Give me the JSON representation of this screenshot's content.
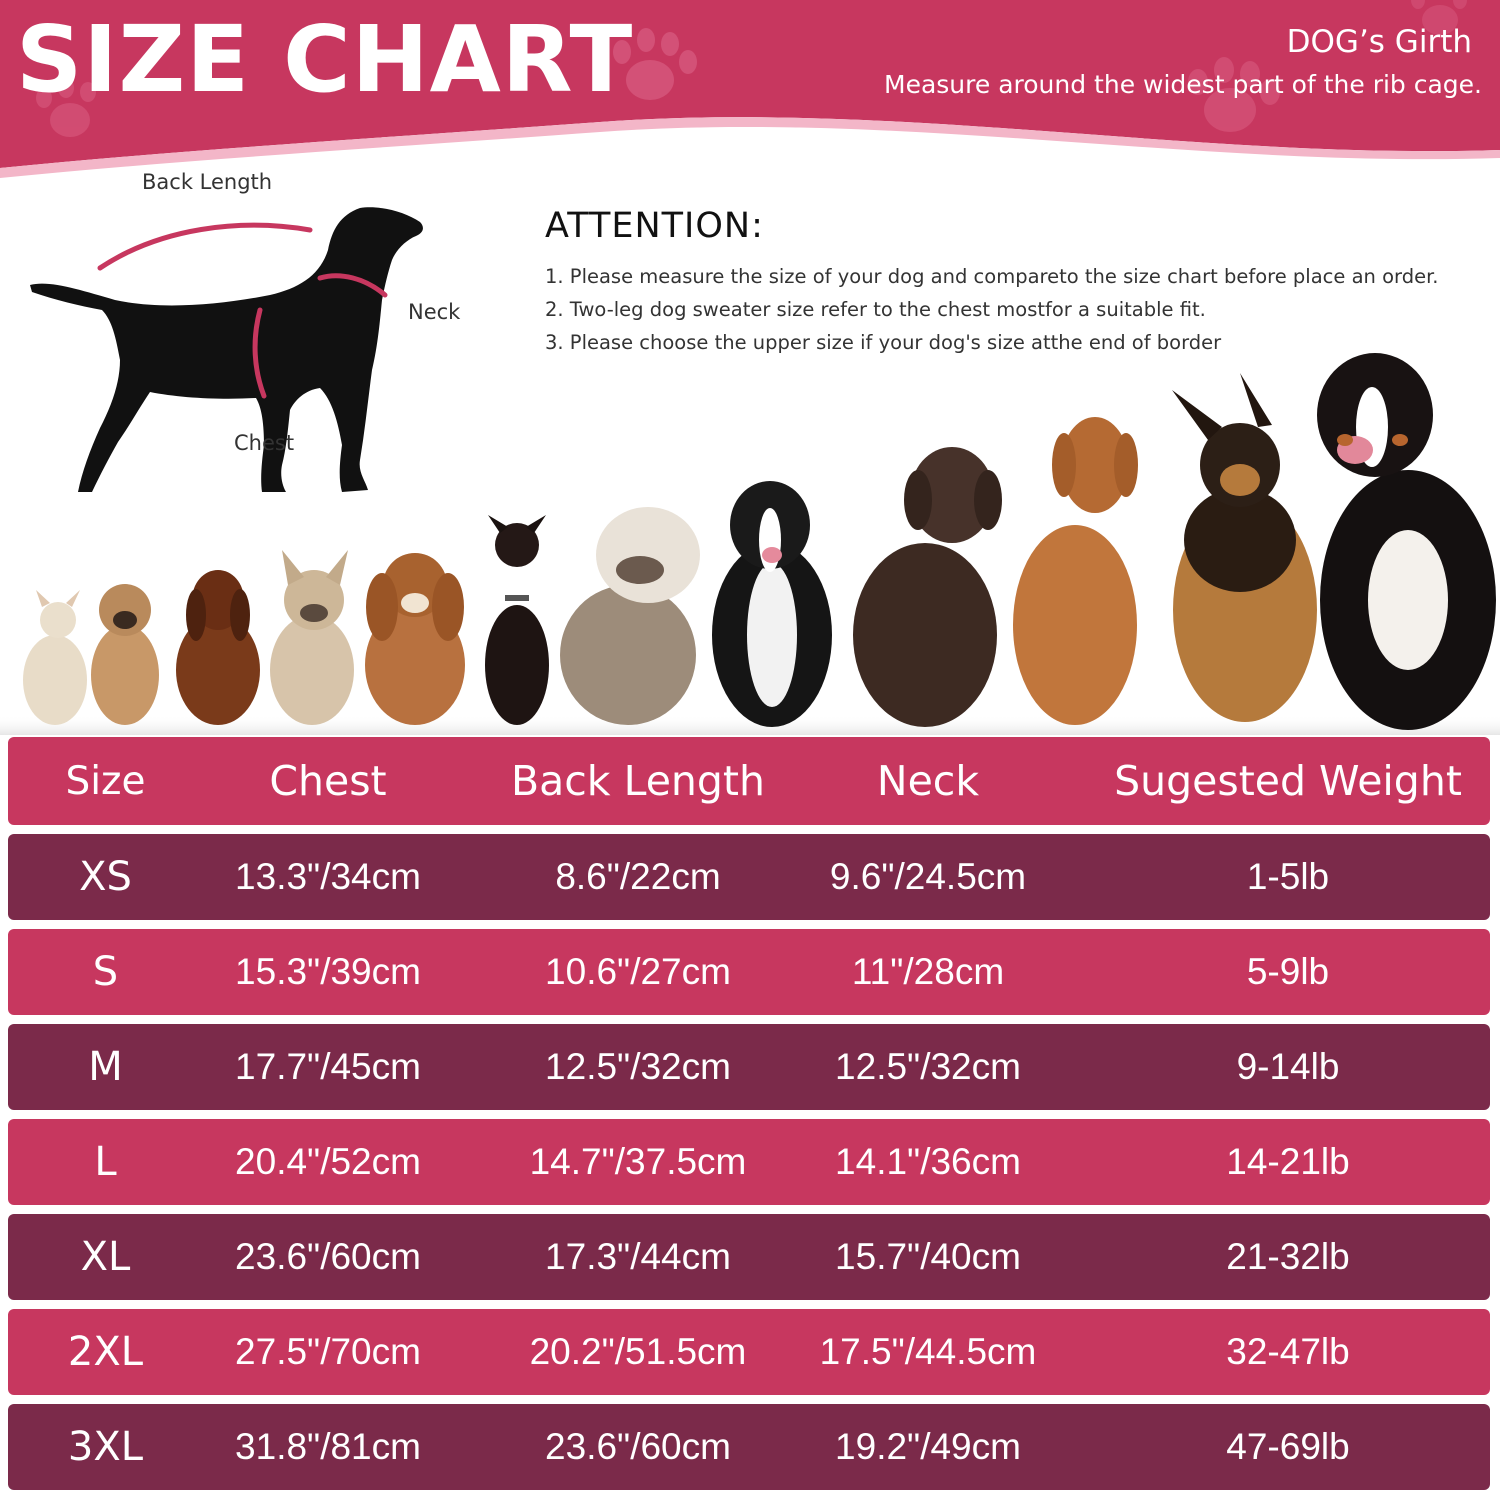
{
  "banner": {
    "title": "SIZE CHART",
    "girth_title": "DOG’s Girth",
    "girth_desc": "Measure around the widest part of the rib cage.",
    "color": "#c7375f"
  },
  "diagram": {
    "back_length_label": "Back Length",
    "neck_label": "Neck",
    "chest_label": "Chest",
    "dog_icon": "dog-silhouette-icon",
    "accent": "#c7375f"
  },
  "attention": {
    "heading": "ATTENTION:",
    "items": [
      "1. Please measure the size of your dog and compareto the size chart before place an order.",
      "2. Two-leg dog sweater size refer to the chest mostfor a suitable fit.",
      "3. Please choose the upper size if your dog's size atthe end of border"
    ]
  },
  "dogs_row": {
    "icon": "dog-breeds-photo-row"
  },
  "table": {
    "headers": [
      "Size",
      "Chest",
      "Back Length",
      "Neck",
      "Sugested Weight"
    ],
    "rows": [
      [
        "XS",
        "13.3\"/34cm",
        "8.6\"/22cm",
        "9.6\"/24.5cm",
        "1-5lb"
      ],
      [
        "S",
        "15.3\"/39cm",
        "10.6\"/27cm",
        "11\"/28cm",
        "5-9lb"
      ],
      [
        "M",
        "17.7\"/45cm",
        "12.5\"/32cm",
        "12.5\"/32cm",
        "9-14lb"
      ],
      [
        "L",
        "20.4\"/52cm",
        "14.7\"/37.5cm",
        "14.1\"/36cm",
        "14-21lb"
      ],
      [
        "XL",
        "23.6\"/60cm",
        "17.3\"/44cm",
        "15.7\"/40cm",
        "21-32lb"
      ],
      [
        "2XL",
        "27.5\"/70cm",
        "20.2\"/51.5cm",
        "17.5\"/44.5cm",
        "32-47lb"
      ],
      [
        "3XL",
        "31.8\"/81cm",
        "23.6\"/60cm",
        "19.2\"/49cm",
        "47-69lb"
      ]
    ],
    "dark_color": "#7b2a4a",
    "light_color": "#c7375f"
  }
}
